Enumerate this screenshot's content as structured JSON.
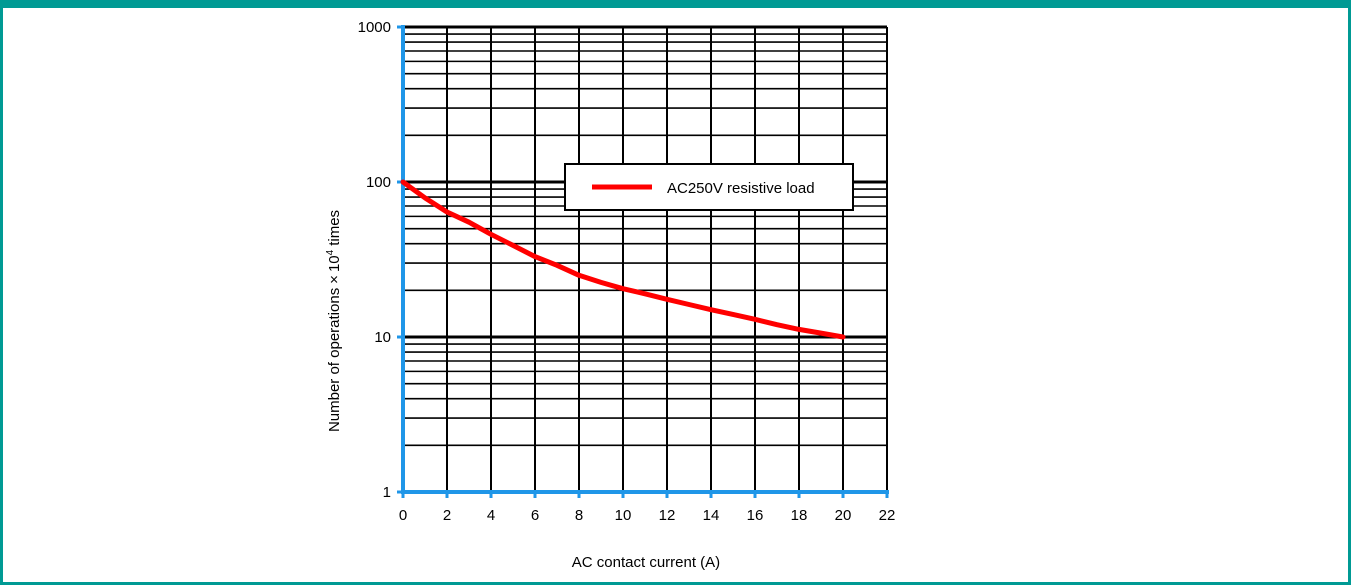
{
  "chart_data": {
    "type": "line",
    "xlabel": "AC contact current (A)",
    "ylabel": {
      "prefix": "Number of operations",
      "times_sign": "×",
      "base": "10",
      "exponent": "4",
      "suffix": "times"
    },
    "xlim": [
      0,
      22
    ],
    "ylim": [
      1,
      1000
    ],
    "y_scale": "log",
    "x_ticks": [
      "0",
      "2",
      "4",
      "6",
      "8",
      "10",
      "12",
      "14",
      "16",
      "18",
      "20",
      "22"
    ],
    "y_ticks": [
      "1",
      "10",
      "100",
      "1000"
    ],
    "grid": true,
    "legend_position": "upper-right",
    "series": [
      {
        "name": "AC250V resistive load",
        "color": "#ff0000",
        "x": [
          0,
          1,
          2,
          3,
          4,
          5,
          6,
          7,
          8,
          9,
          10,
          11,
          12,
          13,
          14,
          15,
          16,
          17,
          18,
          19,
          20
        ],
        "y": [
          100,
          79,
          64,
          55,
          46,
          39,
          33,
          29,
          25,
          22.5,
          20.5,
          19,
          17.5,
          16.2,
          15,
          14,
          13,
          12,
          11.2,
          10.6,
          10
        ]
      }
    ],
    "colors": {
      "axis": "#1f96e8",
      "grid": "#000000",
      "frame": "#009a94"
    }
  }
}
